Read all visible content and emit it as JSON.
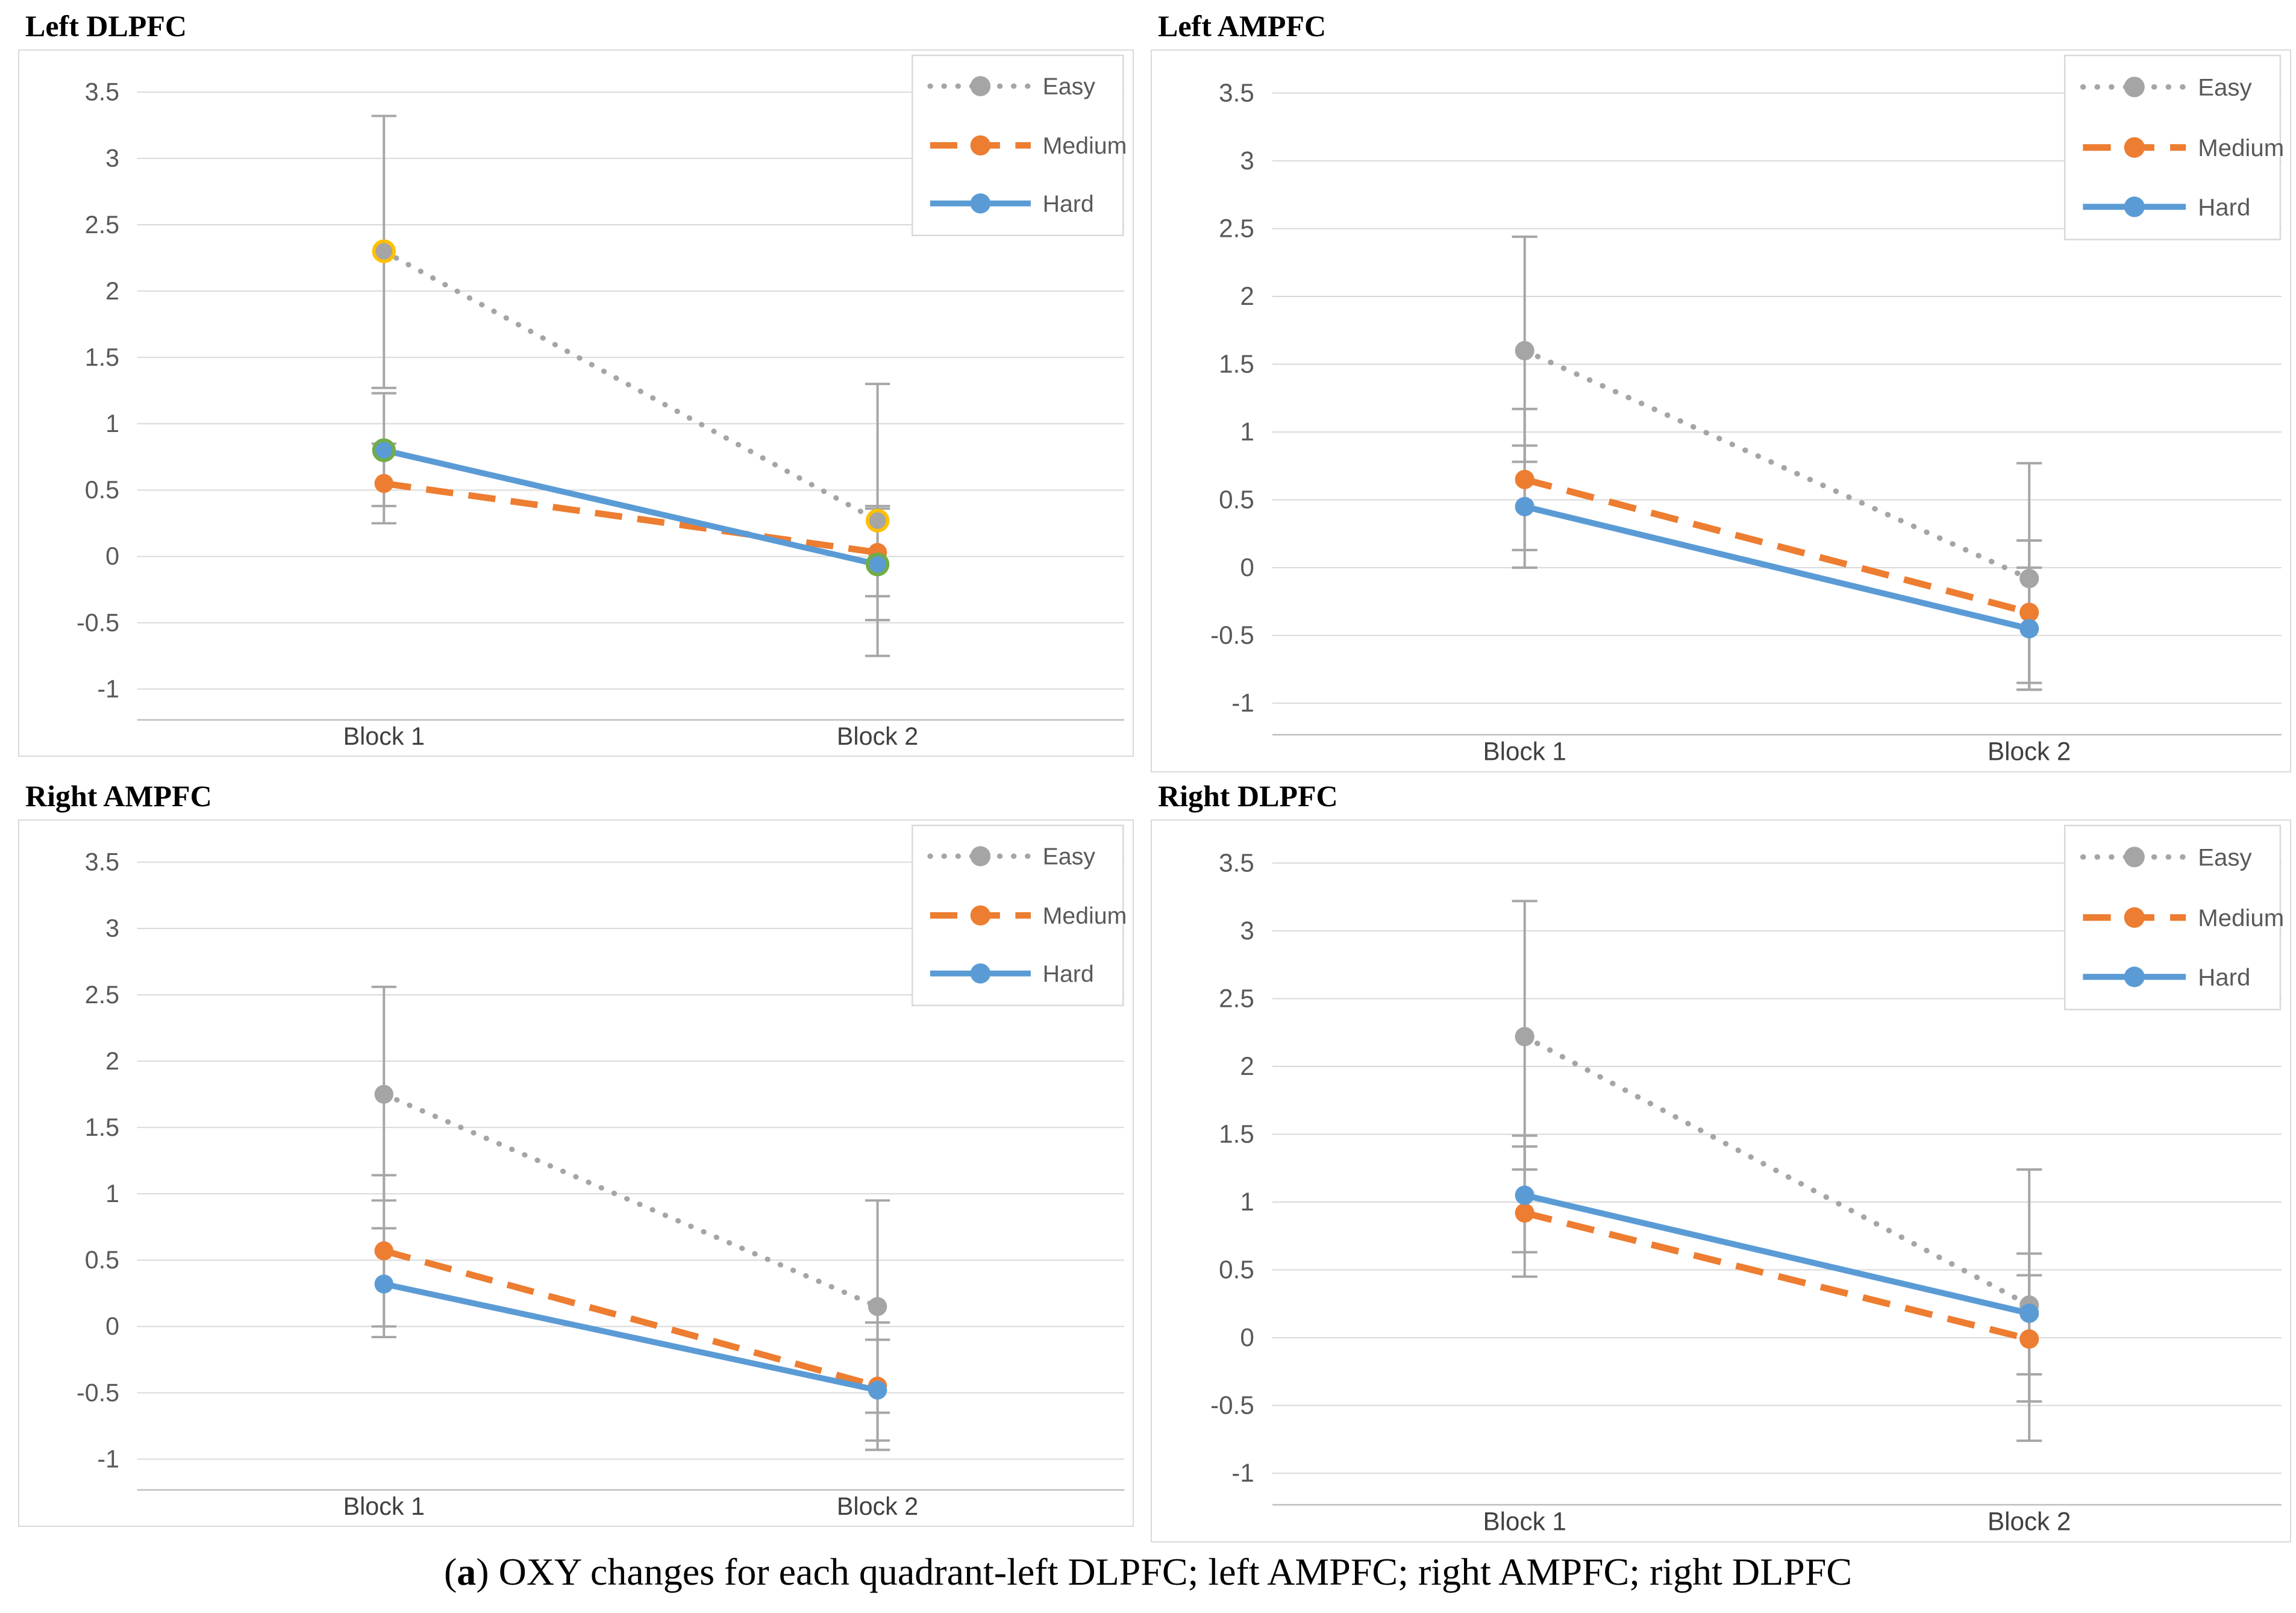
{
  "caption": {
    "open": "(",
    "bold": "a",
    "rest": ") OXY changes for each quadrant-left DLPFC; left AMPFC; right AMPFC; right DLPFC"
  },
  "axis": {
    "y_tick_labels": [
      "3.5",
      "3",
      "2.5",
      "2",
      "1.5",
      "1",
      "0.5",
      "0",
      "-0.5",
      "-1"
    ],
    "y_tick_values": [
      3.5,
      3,
      2.5,
      2,
      1.5,
      1,
      0.5,
      0,
      -0.5,
      -1
    ],
    "y_min": -1,
    "y_max": 3.5,
    "grid": true,
    "categories": [
      "Block 1",
      "Block 2"
    ]
  },
  "legend": {
    "position": "top-right",
    "entries": [
      "Easy",
      "Medium",
      "Hard"
    ]
  },
  "style": {
    "easy_color": "#a5a5a5",
    "medium_color": "#ed7d31",
    "hard_color": "#5b9bd5",
    "error_bar_color": "#a6a6a6",
    "grid_line_color": "#d9d9d9",
    "axis_line_color": "#bfbfbf",
    "axis_text_color": "#595959",
    "legend_border_color": "#d9d9d9",
    "easy_marker_ring": "#ffc000",
    "hard_marker_ring": "#70ad47",
    "easy_line_style": "dotted",
    "medium_line_style": "dashed",
    "hard_line_style": "solid"
  },
  "chart_data": [
    {
      "type": "line",
      "title": "Left DLPFC",
      "position": "top-left",
      "categories": [
        "Block 1",
        "Block 2"
      ],
      "ylim": [
        -1,
        3.5
      ],
      "series": [
        {
          "name": "Easy",
          "values": [
            2.3,
            0.27
          ],
          "error_low": [
            1.27,
            -0.75
          ],
          "error_high": [
            3.32,
            1.3
          ],
          "marker_ring": "#ffc000"
        },
        {
          "name": "Medium",
          "values": [
            0.55,
            0.03
          ],
          "error_low": [
            0.25,
            -0.3
          ],
          "error_high": [
            0.85,
            0.36
          ]
        },
        {
          "name": "Hard",
          "values": [
            0.8,
            -0.06
          ],
          "error_low": [
            0.38,
            -0.48
          ],
          "error_high": [
            1.23,
            0.38
          ],
          "marker_ring": "#70ad47"
        }
      ]
    },
    {
      "type": "line",
      "title": "Left AMPFC",
      "position": "top-right",
      "categories": [
        "Block 1",
        "Block 2"
      ],
      "ylim": [
        -1,
        3.5
      ],
      "series": [
        {
          "name": "Easy",
          "values": [
            1.6,
            -0.08
          ],
          "error_low": [
            0.78,
            -0.9
          ],
          "error_high": [
            2.44,
            0.77
          ]
        },
        {
          "name": "Medium",
          "values": [
            0.65,
            -0.33
          ],
          "error_low": [
            0.13,
            -0.85
          ],
          "error_high": [
            1.17,
            0.2
          ]
        },
        {
          "name": "Hard",
          "values": [
            0.45,
            -0.45
          ],
          "error_low": [
            0.0,
            -0.9
          ],
          "error_high": [
            0.9,
            0.0
          ]
        }
      ]
    },
    {
      "type": "line",
      "title": "Right AMPFC",
      "position": "bottom-left",
      "categories": [
        "Block 1",
        "Block 2"
      ],
      "ylim": [
        -1,
        3.5
      ],
      "series": [
        {
          "name": "Easy",
          "values": [
            1.75,
            0.15
          ],
          "error_low": [
            0.95,
            -0.65
          ],
          "error_high": [
            2.56,
            0.95
          ]
        },
        {
          "name": "Medium",
          "values": [
            0.57,
            -0.45
          ],
          "error_low": [
            0.0,
            -0.93
          ],
          "error_high": [
            1.14,
            0.03
          ]
        },
        {
          "name": "Hard",
          "values": [
            0.32,
            -0.48
          ],
          "error_low": [
            -0.08,
            -0.86
          ],
          "error_high": [
            0.74,
            -0.1
          ]
        }
      ]
    },
    {
      "type": "line",
      "title": "Right DLPFC",
      "position": "bottom-right",
      "categories": [
        "Block 1",
        "Block 2"
      ],
      "ylim": [
        -1,
        3.5
      ],
      "series": [
        {
          "name": "Easy",
          "values": [
            2.22,
            0.24
          ],
          "error_low": [
            1.24,
            -0.76
          ],
          "error_high": [
            3.22,
            1.24
          ]
        },
        {
          "name": "Medium",
          "values": [
            0.92,
            -0.01
          ],
          "error_low": [
            0.45,
            -0.47
          ],
          "error_high": [
            1.41,
            0.46
          ]
        },
        {
          "name": "Hard",
          "values": [
            1.05,
            0.18
          ],
          "error_low": [
            0.63,
            -0.27
          ],
          "error_high": [
            1.49,
            0.62
          ]
        }
      ]
    }
  ]
}
